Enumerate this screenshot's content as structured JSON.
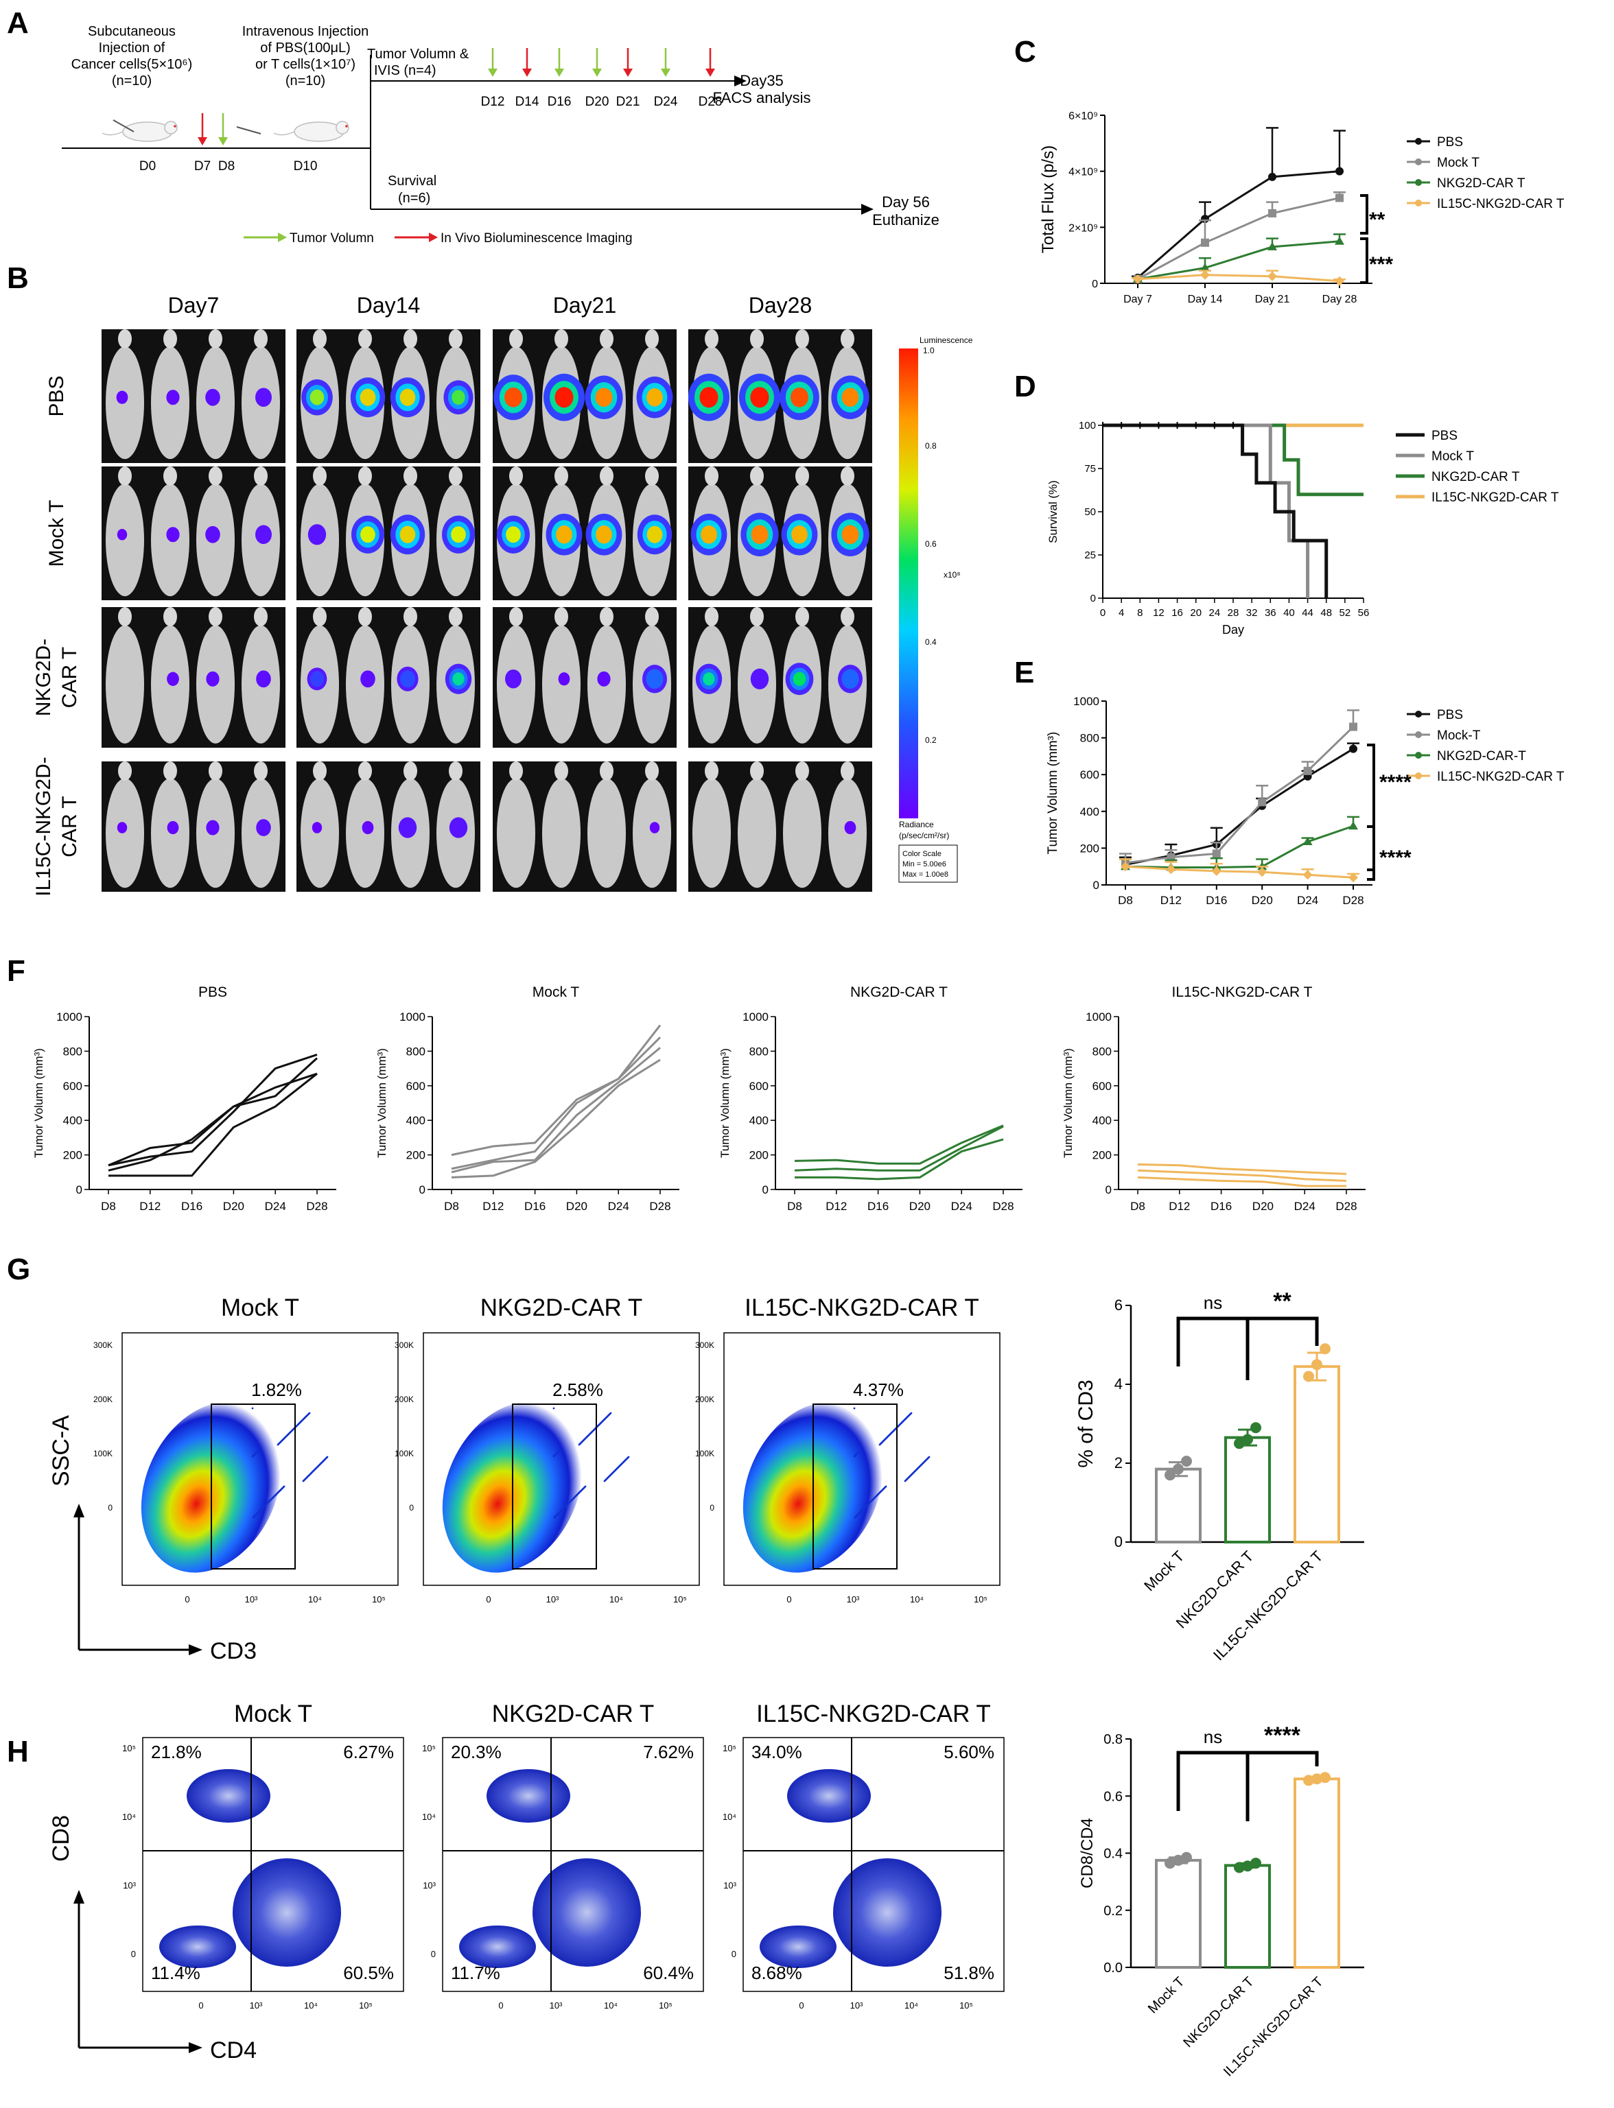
{
  "colors": {
    "pbs": "#111111",
    "mock": "#8c8c8c",
    "nkg2d": "#2e7d32",
    "il15": "#f0b65b",
    "arrow_green": "#8dc63f",
    "arrow_red": "#e01e26",
    "facs_box": "#000000"
  },
  "panels": {
    "a": "A",
    "b": "B",
    "c": "C",
    "d": "D",
    "e": "E",
    "f": "F",
    "g": "G",
    "h": "H"
  },
  "schema": {
    "inj1": [
      "Subcutaneous",
      "Injection of",
      "Cancer cells(5×10⁶)",
      "(n=10)"
    ],
    "inj2": [
      "Intravenous Injection",
      "of  PBS(100μL)",
      "or T cells(1×10⁷)",
      "(n=10)"
    ],
    "tumor": [
      "Tumor Volumn &",
      "IVIS (n=4)"
    ],
    "days_main": [
      "D0",
      "D7",
      "D8",
      "D10"
    ],
    "days_top": [
      "D12",
      "D14",
      "D16",
      "D20",
      "D21",
      "D24",
      "D28"
    ],
    "day35": [
      "Day35",
      "FACS analysis"
    ],
    "survival": [
      "Survival",
      "(n=6)"
    ],
    "day56": [
      "Day 56",
      "Euthanize"
    ],
    "legend_green": "Tumor Volumn",
    "legend_red": "In Vivo Bioluminescence Imaging"
  },
  "ivis": {
    "days": [
      "Day7",
      "Day14",
      "Day21",
      "Day28"
    ],
    "groups": [
      "PBS",
      "Mock T",
      [
        "NKG2D-",
        "CAR T"
      ],
      [
        "IL15C-NKG2D-",
        "CAR T"
      ]
    ],
    "scale_title": "Luminescence",
    "scale_ticks": [
      "1.0",
      "0.8",
      "0.6",
      "0.4",
      "0.2"
    ],
    "scale_unit": "x10⁸",
    "radiance": [
      "Radiance",
      "(p/sec/cm²/sr)"
    ],
    "color_scale": [
      "Color Scale",
      "Min = 5.00e6",
      "Max = 1.00e8"
    ],
    "intensity": [
      [
        [
          0.1,
          0.15,
          0.2,
          0.25
        ],
        [
          0.7,
          0.8,
          0.8,
          0.65
        ],
        [
          0.95,
          1.0,
          0.9,
          0.85
        ],
        [
          1.0,
          1.0,
          0.95,
          0.9
        ]
      ],
      [
        [
          0.05,
          0.15,
          0.2,
          0.25
        ],
        [
          0.3,
          0.75,
          0.8,
          0.75
        ],
        [
          0.75,
          0.85,
          0.85,
          0.8
        ],
        [
          0.85,
          0.9,
          0.85,
          0.9
        ]
      ],
      [
        [
          0.0,
          0.12,
          0.15,
          0.2
        ],
        [
          0.35,
          0.2,
          0.4,
          0.55
        ],
        [
          0.25,
          0.1,
          0.15,
          0.5
        ],
        [
          0.55,
          0.3,
          0.6,
          0.5
        ]
      ],
      [
        [
          0.05,
          0.1,
          0.15,
          0.2
        ],
        [
          0.05,
          0.1,
          0.3,
          0.3
        ],
        [
          0.0,
          0.0,
          0.0,
          0.05
        ],
        [
          0.0,
          0.0,
          0.0,
          0.1
        ]
      ]
    ]
  },
  "chart_data": [
    {
      "panel": "C",
      "type": "line",
      "ylabel": "Total Flux (p/s)",
      "categories": [
        "Day 7",
        "Day 14",
        "Day 21",
        "Day 28"
      ],
      "ylim": [
        0,
        6000000000
      ],
      "ytick_labels": [
        "0",
        "2×10⁹",
        "4×10⁹",
        "6×10⁹"
      ],
      "series": [
        {
          "name": "PBS",
          "values": [
            200000000,
            2300000000,
            3800000000,
            4000000000
          ],
          "err": [
            50000000,
            600000000,
            1750000000,
            1450000000
          ]
        },
        {
          "name": "Mock T",
          "values": [
            150000000,
            1450000000,
            2500000000,
            3050000000
          ],
          "err": [
            50000000,
            800000000,
            400000000,
            200000000
          ]
        },
        {
          "name": "NKG2D-CAR T",
          "values": [
            150000000,
            550000000,
            1300000000,
            1500000000
          ],
          "err": [
            40000000,
            350000000,
            300000000,
            250000000
          ]
        },
        {
          "name": "IL15C-NKG2D-CAR T",
          "values": [
            150000000,
            300000000,
            250000000,
            80000000
          ],
          "err": [
            40000000,
            150000000,
            200000000,
            60000000
          ]
        }
      ],
      "sig": [
        "**",
        "***"
      ]
    },
    {
      "panel": "D",
      "type": "line",
      "ylabel": "Survival (%)",
      "xlabel": "Day",
      "xticks": [
        0,
        4,
        8,
        12,
        16,
        20,
        24,
        28,
        32,
        36,
        40,
        44,
        48,
        52,
        56
      ],
      "ylim": [
        0,
        100
      ],
      "yticks": [
        0,
        25,
        50,
        75,
        100
      ],
      "series": [
        {
          "name": "PBS",
          "x": [
            0,
            30,
            30,
            33,
            33,
            37,
            37,
            41,
            41,
            48,
            48
          ],
          "y": [
            100,
            100,
            83.3,
            83.3,
            66.7,
            66.7,
            50,
            50,
            33.3,
            33.3,
            0
          ]
        },
        {
          "name": "Mock T",
          "x": [
            0,
            36,
            36,
            40,
            40,
            44,
            44
          ],
          "y": [
            100,
            100,
            66.7,
            66.7,
            33.3,
            33.3,
            0
          ]
        },
        {
          "name": "NKG2D-CAR T",
          "x": [
            0,
            39,
            39,
            42,
            42,
            56
          ],
          "y": [
            100,
            100,
            80,
            80,
            60,
            60
          ]
        },
        {
          "name": "IL15C-NKG2D-CAR T",
          "x": [
            0,
            56
          ],
          "y": [
            100,
            100
          ]
        }
      ]
    },
    {
      "panel": "E",
      "type": "line",
      "ylabel": "Tumor Volumn (mm³)",
      "categories": [
        "D8",
        "D12",
        "D16",
        "D20",
        "D24",
        "D28"
      ],
      "ylim": [
        0,
        1000
      ],
      "yticks": [
        0,
        200,
        400,
        600,
        800,
        1000
      ],
      "series": [
        {
          "name": "PBS",
          "values": [
            110,
            160,
            220,
            430,
            590,
            740
          ],
          "err": [
            40,
            60,
            90,
            40,
            30,
            30
          ]
        },
        {
          "name": "Mock-T",
          "values": [
            120,
            150,
            170,
            450,
            620,
            860
          ],
          "err": [
            50,
            40,
            60,
            90,
            50,
            90
          ]
        },
        {
          "name": "NKG2D-CAR-T",
          "values": [
            100,
            95,
            95,
            100,
            235,
            320
          ],
          "err": [
            40,
            40,
            50,
            40,
            20,
            50
          ]
        },
        {
          "name": "IL15C-NKG2D-CAR T",
          "values": [
            100,
            85,
            75,
            70,
            55,
            40
          ],
          "err": [
            40,
            40,
            40,
            30,
            30,
            20
          ]
        }
      ],
      "sig": [
        "****",
        "****"
      ]
    },
    {
      "panel": "F",
      "type": "line",
      "ylabel": "Tumor Volumn (mm³)",
      "categories": [
        "D8",
        "D12",
        "D16",
        "D20",
        "D24",
        "D28"
      ],
      "ylim": [
        0,
        1000
      ],
      "yticks": [
        0,
        200,
        400,
        600,
        800,
        1000
      ],
      "subplots": [
        {
          "title": "PBS",
          "lines": [
            [
              140,
              190,
              220,
              450,
              700,
              780
            ],
            [
              110,
              170,
              290,
              480,
              540,
              760
            ],
            [
              80,
              80,
              80,
              360,
              480,
              670
            ],
            [
              140,
              240,
              270,
              480,
              590,
              670
            ]
          ]
        },
        {
          "title": "Mock T",
          "lines": [
            [
              200,
              250,
              270,
              520,
              640,
              950
            ],
            [
              120,
              170,
              220,
              500,
              640,
              880
            ],
            [
              100,
              160,
              170,
              430,
              620,
              820
            ],
            [
              70,
              80,
              160,
              370,
              600,
              750
            ]
          ]
        },
        {
          "title": "NKG2D-CAR T",
          "lines": [
            [
              165,
              170,
              150,
              150,
              270,
              370
            ],
            [
              110,
              120,
              110,
              110,
              240,
              365
            ],
            [
              70,
              70,
              60,
              70,
              220,
              290
            ]
          ]
        },
        {
          "title": "IL15C-NKG2D-CAR T",
          "lines": [
            [
              145,
              140,
              120,
              110,
              100,
              90
            ],
            [
              110,
              100,
              90,
              80,
              60,
              50
            ],
            [
              70,
              60,
              50,
              45,
              20,
              20
            ]
          ]
        }
      ]
    },
    {
      "panel": "G",
      "type": "bar",
      "ylabel": "% of CD3",
      "categories": [
        "Mock T",
        "NKG2D-CAR T",
        "IL15C-NKG2D-CAR T"
      ],
      "values": [
        1.85,
        2.65,
        4.45
      ],
      "points": [
        [
          1.7,
          1.85,
          2.05
        ],
        [
          2.5,
          2.6,
          2.9
        ],
        [
          4.2,
          4.5,
          4.9
        ]
      ],
      "ylim": [
        0,
        6
      ],
      "yticks": [
        0,
        2,
        4,
        6
      ],
      "sig": [
        "ns",
        "**"
      ]
    },
    {
      "panel": "H",
      "type": "bar",
      "ylabel": "CD8/CD4",
      "categories": [
        "Mock T",
        "NKG2D-CAR T",
        "IL15C-NKG2D-CAR T"
      ],
      "values": [
        0.375,
        0.357,
        0.66
      ],
      "points": [
        [
          0.365,
          0.375,
          0.385
        ],
        [
          0.35,
          0.355,
          0.365
        ],
        [
          0.655,
          0.66,
          0.665
        ]
      ],
      "ylim": [
        0,
        0.8
      ],
      "yticks": [
        "0.0",
        "0.2",
        "0.4",
        "0.6",
        "0.8"
      ],
      "sig": [
        "ns",
        "****"
      ]
    }
  ],
  "facs_g": {
    "titles": [
      "Mock T",
      "NKG2D-CAR T",
      "IL15C-NKG2D-CAR T"
    ],
    "percents": [
      "1.82%",
      "2.58%",
      "4.37%"
    ],
    "yticks": [
      "300K",
      "200K",
      "100K",
      "0"
    ],
    "xticks": [
      "0",
      "10³",
      "10⁴",
      "10⁵"
    ],
    "xaxis": "CD3",
    "yaxis": "SSC-A"
  },
  "facs_h": {
    "titles": [
      "Mock T",
      "NKG2D-CAR T",
      "IL15C-NKG2D-CAR T"
    ],
    "quadrants": [
      [
        "21.8%",
        "6.27%",
        "11.4%",
        "60.5%"
      ],
      [
        "20.3%",
        "7.62%",
        "11.7%",
        "60.4%"
      ],
      [
        "34.0%",
        "5.60%",
        "8.68%",
        "51.8%"
      ]
    ],
    "yticks": [
      "10⁵",
      "10⁴",
      "10³",
      "0"
    ],
    "xticks": [
      "0",
      "10³",
      "10⁴",
      "10⁵"
    ],
    "xaxis": "CD4",
    "yaxis": "CD8"
  }
}
